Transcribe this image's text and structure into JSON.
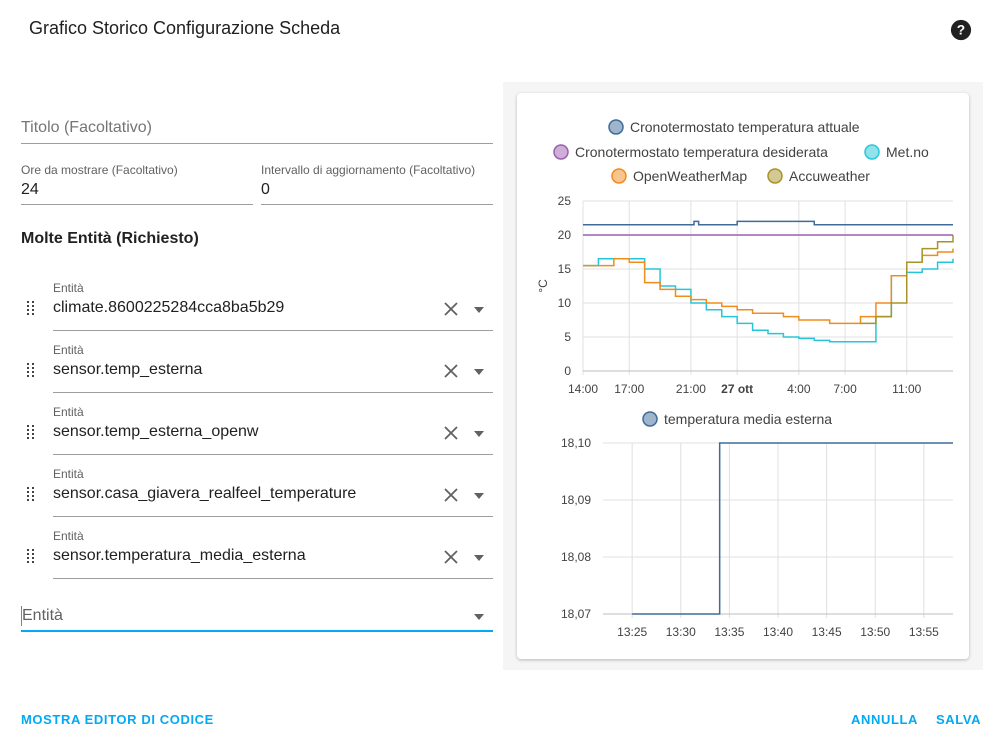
{
  "dialog": {
    "title": "Grafico Storico Configurazione Scheda",
    "help_icon": "help-circle-icon"
  },
  "form": {
    "title_field": {
      "placeholder": "Titolo (Facoltativo)",
      "value": ""
    },
    "hours_field": {
      "label": "Ore da mostrare (Facoltativo)",
      "value": "24"
    },
    "refresh_field": {
      "label": "Intervallo di aggiornamento (Facoltativo)",
      "value": "0"
    },
    "entities_section_title": "Molte Entità (Richiesto)",
    "entity_label": "Entità",
    "entities": [
      "climate.8600225284cca8ba5b29",
      "sensor.temp_esterna",
      "sensor.temp_esterna_openw",
      "sensor.casa_giavera_realfeel_temperature",
      "sensor.temperatura_media_esterna"
    ],
    "new_entity_placeholder": "Entità"
  },
  "actions": {
    "show_code_editor": "MOSTRA EDITOR DI CODICE",
    "cancel": "ANNULLA",
    "save": "SALVA"
  },
  "colors": {
    "accent": "#03a9f4",
    "series_blue": "#3f6b9a",
    "series_purple": "#9c5fb0",
    "series_cyan": "#26c6da",
    "series_orange": "#f08c1c",
    "series_olive": "#a8932a"
  },
  "chart_data": [
    {
      "type": "line",
      "ylabel": "°C",
      "ylim": [
        0,
        25
      ],
      "yticks": [
        "0",
        "5",
        "10",
        "15",
        "20",
        "25"
      ],
      "xticks": [
        "14:00",
        "17:00",
        "21:00",
        "27 ott",
        "4:00",
        "7:00",
        "11:00"
      ],
      "legend_position": "top",
      "grid": true,
      "series": [
        {
          "name": "Cronotermostato temperatura attuale",
          "color": "#3f6b9a",
          "x": [
            14,
            21,
            21.2,
            21.5,
            24,
            29,
            34,
            35,
            38
          ],
          "y": [
            21.5,
            21.5,
            22,
            21.5,
            22,
            21.5,
            21.5,
            21.5,
            21.5
          ]
        },
        {
          "name": "Cronotermostato temperatura desiderata",
          "color": "#9c5fb0",
          "x": [
            14,
            38
          ],
          "y": [
            20,
            20
          ]
        },
        {
          "name": "Met.no",
          "color": "#26c6da",
          "x": [
            14,
            15,
            17,
            18,
            19,
            20,
            21,
            22,
            23,
            24,
            25,
            26,
            27,
            28,
            29,
            30,
            31,
            32,
            33,
            34,
            35,
            36,
            37,
            38
          ],
          "y": [
            15.5,
            16.5,
            16.5,
            15,
            12.5,
            12,
            10,
            9,
            8,
            7,
            6,
            5.5,
            5,
            4.8,
            4.5,
            4.3,
            4.3,
            4.3,
            8,
            14,
            14.5,
            15,
            16,
            16.5
          ]
        },
        {
          "name": "OpenWeatherMap",
          "color": "#f08c1c",
          "x": [
            14,
            15,
            16,
            17,
            18,
            19,
            20,
            21,
            22,
            23,
            24,
            25,
            26,
            27,
            28,
            29,
            30,
            31,
            32,
            33,
            34,
            35,
            36,
            37,
            38
          ],
          "y": [
            15.5,
            15.5,
            16.5,
            16,
            13,
            12,
            11,
            10.5,
            10,
            9.5,
            9,
            8.5,
            8.5,
            8,
            7.5,
            7.5,
            7,
            7,
            8,
            10,
            14,
            16,
            17,
            17.5,
            18
          ]
        },
        {
          "name": "Accuweather",
          "color": "#a8932a",
          "x": [
            32,
            33,
            34,
            35,
            36,
            37,
            38
          ],
          "y": [
            7,
            8,
            10,
            16,
            18,
            19,
            20
          ]
        }
      ]
    },
    {
      "type": "line",
      "legend_position": "top",
      "grid": true,
      "ylim": [
        18.07,
        18.1
      ],
      "yticks": [
        "18,07",
        "18,08",
        "18,09",
        "18,10"
      ],
      "xticks": [
        "13:25",
        "13:30",
        "13:35",
        "13:40",
        "13:45",
        "13:50",
        "13:55"
      ],
      "series": [
        {
          "name": "temperatura media esterna",
          "color": "#3f6b9a",
          "x": [
            "13:25",
            "13:34",
            "13:34",
            "13:58"
          ],
          "y": [
            18.07,
            18.07,
            18.1,
            18.1
          ]
        }
      ]
    }
  ]
}
